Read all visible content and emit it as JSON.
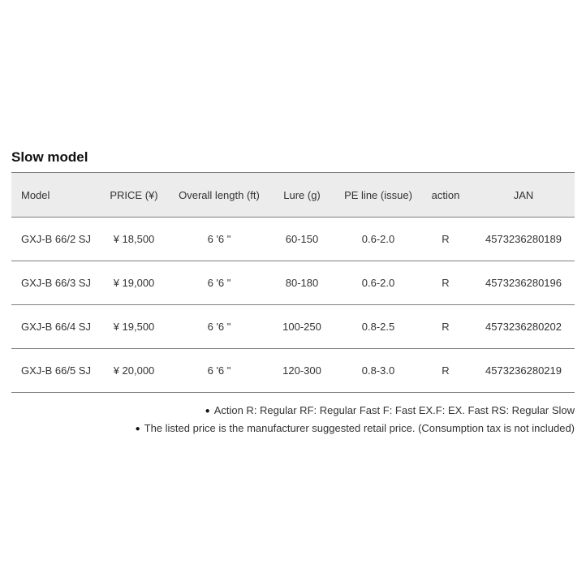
{
  "section": {
    "title": "Slow model"
  },
  "table": {
    "columns": [
      "Model",
      "PRICE (¥)",
      "Overall length (ft)",
      "Lure (g)",
      "PE line (issue)",
      "action",
      "JAN"
    ],
    "rows": [
      [
        "GXJ-B 66/2 SJ",
        "¥ 18,500",
        "6 '6 \"",
        "60-150",
        "0.6-2.0",
        "R",
        "4573236280189"
      ],
      [
        "GXJ-B 66/3 SJ",
        "¥ 19,000",
        "6 '6 \"",
        "80-180",
        "0.6-2.0",
        "R",
        "4573236280196"
      ],
      [
        "GXJ-B 66/4 SJ",
        "¥ 19,500",
        "6 '6 \"",
        "100-250",
        "0.8-2.5",
        "R",
        "4573236280202"
      ],
      [
        "GXJ-B 66/5 SJ",
        "¥ 20,000",
        "6 '6 \"",
        "120-300",
        "0.8-3.0",
        "R",
        "4573236280219"
      ]
    ]
  },
  "notes": [
    "Action R: Regular RF: Regular Fast F: Fast EX.F: EX. Fast RS: Regular Slow",
    "The listed price is the manufacturer suggested retail price. (Consumption tax is not included)"
  ],
  "icons": {
    "bullet": "●"
  },
  "colors": {
    "header_bg": "#ececec",
    "border": "#7d7d7d",
    "text": "#333333",
    "title": "#111111",
    "background": "#ffffff"
  }
}
